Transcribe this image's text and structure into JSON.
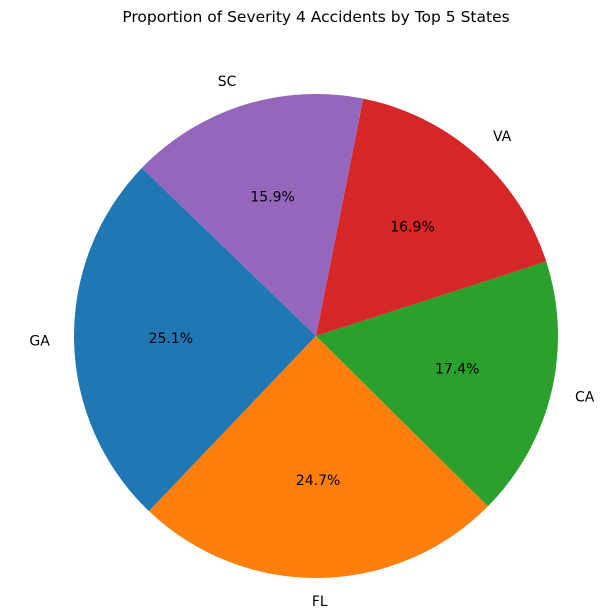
{
  "chart_data": {
    "type": "pie",
    "title": "Proportion of Severity 4 Accidents by Top 5 States",
    "start_category": "GA",
    "direction": "counterclockwise",
    "categories": [
      "GA",
      "FL",
      "CA",
      "VA",
      "SC"
    ],
    "values": [
      25.1,
      24.7,
      17.4,
      16.9,
      15.9
    ],
    "labels": [
      "25.1%",
      "24.7%",
      "17.4%",
      "16.9%",
      "15.9%"
    ],
    "colors": [
      "#1f77b4",
      "#ff7f0e",
      "#2ca02c",
      "#d62728",
      "#9467bd"
    ]
  }
}
